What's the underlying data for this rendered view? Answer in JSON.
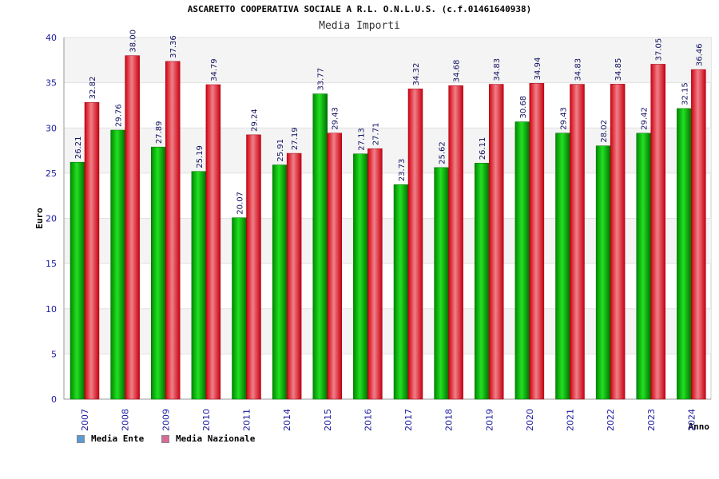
{
  "chart_data": {
    "type": "bar",
    "title": "ASCARETTO COOPERATIVA SOCIALE A R.L. O.N.L.U.S. (c.f.01461640938)",
    "subtitle": "Media Importi",
    "xlabel": "Anno",
    "ylabel": "Euro",
    "ylim": [
      0,
      40
    ],
    "yticks": [
      0,
      5,
      10,
      15,
      20,
      25,
      30,
      35,
      40
    ],
    "categories": [
      "2007",
      "2008",
      "2009",
      "2010",
      "2011",
      "2014",
      "2015",
      "2016",
      "2017",
      "2018",
      "2019",
      "2020",
      "2021",
      "2022",
      "2023",
      "2024"
    ],
    "series": [
      {
        "name": "Media Ente",
        "color": "#00b000",
        "legend_color": "#5b9bd5",
        "values": [
          26.21,
          29.76,
          27.89,
          25.19,
          20.07,
          25.91,
          33.77,
          27.13,
          23.73,
          25.62,
          26.11,
          30.68,
          29.43,
          28.02,
          29.42,
          32.15
        ],
        "labels": [
          "26.21",
          "29.76",
          "27.89",
          "25.19",
          "20.07",
          "25.91",
          "33.77",
          "27.13",
          "23.73",
          "25.62",
          "26.11",
          "30.68",
          "29.43",
          "28.02",
          "29.42",
          "32.15"
        ]
      },
      {
        "name": "Media Nazionale",
        "color": "#e8141e",
        "legend_color": "#d86a9a",
        "values": [
          32.82,
          38.0,
          37.36,
          34.79,
          29.24,
          27.19,
          29.43,
          27.71,
          34.32,
          34.68,
          34.83,
          34.94,
          34.83,
          34.85,
          37.05,
          36.46
        ],
        "labels": [
          "32.82",
          "38.00",
          "37.36",
          "34.79",
          "29.24",
          "27.19",
          "29.43",
          "27.71",
          "34.32",
          "34.68",
          "34.83",
          "34.94",
          "34.83",
          "34.85",
          "37.05",
          "36.46"
        ]
      }
    ],
    "grid": true,
    "legend_position": "bottom-left"
  }
}
